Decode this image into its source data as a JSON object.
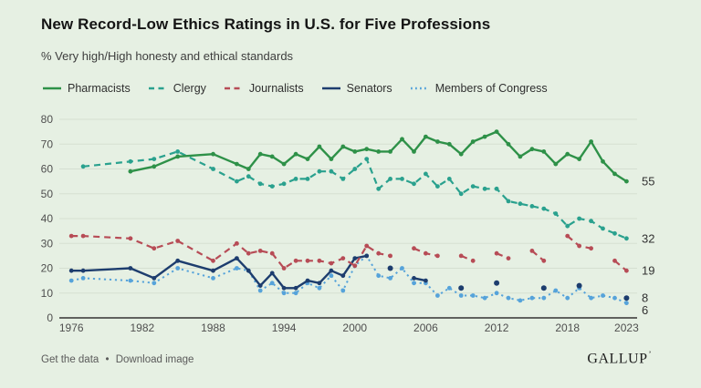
{
  "header": {
    "title": "New Record-Low Ethics Ratings in U.S. for Five Professions",
    "subtitle": "% Very high/High honesty and ethical standards"
  },
  "footer": {
    "get_data_label": "Get the data",
    "separator": "•",
    "download_label": "Download image",
    "logo": "GALLUP",
    "logo_mark": "ʼ"
  },
  "colors": {
    "background": "#e6f0e3",
    "gridline": "#d5dfd1",
    "axis_line": "#333333",
    "tick_text": "#4f4f4f",
    "end_label_text": "#323232"
  },
  "chart_data": {
    "type": "line",
    "title": "New Record-Low Ethics Ratings in U.S. for Five Professions",
    "subtitle": "% Very high/High honesty and ethical standards",
    "xlabel": "",
    "ylabel": "",
    "xlim": [
      1976,
      2023
    ],
    "ylim": [
      0,
      80
    ],
    "grid": true,
    "legend_position": "top",
    "x_ticks": [
      1976,
      1982,
      1988,
      1994,
      2000,
      2006,
      2012,
      2018,
      2023
    ],
    "y_ticks": [
      0,
      10,
      20,
      30,
      40,
      50,
      60,
      70,
      80
    ],
    "series": [
      {
        "name": "Pharmacists",
        "slug": "pharmacists",
        "color": "#2e9148",
        "style": "solid",
        "end_label": "55",
        "segments": [
          [
            [
              1981,
              59
            ],
            [
              1983,
              61
            ],
            [
              1985,
              65
            ],
            [
              1988,
              66
            ],
            [
              1990,
              62
            ],
            [
              1991,
              60
            ],
            [
              1992,
              66
            ],
            [
              1993,
              65
            ],
            [
              1994,
              62
            ],
            [
              1995,
              66
            ],
            [
              1996,
              64
            ],
            [
              1997,
              69
            ],
            [
              1998,
              64
            ],
            [
              1999,
              69
            ],
            [
              2000,
              67
            ],
            [
              2001,
              68
            ],
            [
              2002,
              67
            ],
            [
              2003,
              67
            ],
            [
              2004,
              72
            ],
            [
              2005,
              67
            ],
            [
              2006,
              73
            ],
            [
              2007,
              71
            ],
            [
              2008,
              70
            ],
            [
              2009,
              66
            ],
            [
              2010,
              71
            ],
            [
              2011,
              73
            ],
            [
              2012,
              75
            ],
            [
              2013,
              70
            ],
            [
              2014,
              65
            ],
            [
              2015,
              68
            ],
            [
              2016,
              67
            ],
            [
              2017,
              62
            ],
            [
              2018,
              66
            ],
            [
              2019,
              64
            ],
            [
              2020,
              71
            ],
            [
              2021,
              63
            ],
            [
              2022,
              58
            ],
            [
              2023,
              55
            ]
          ]
        ]
      },
      {
        "name": "Clergy",
        "slug": "clergy",
        "color": "#2aa18e",
        "style": "dashed",
        "end_label": "32",
        "segments": [
          [
            [
              1977,
              61
            ],
            [
              1981,
              63
            ],
            [
              1983,
              64
            ],
            [
              1985,
              67
            ],
            [
              1988,
              60
            ],
            [
              1990,
              55
            ],
            [
              1991,
              57
            ],
            [
              1992,
              54
            ],
            [
              1993,
              53
            ],
            [
              1994,
              54
            ],
            [
              1995,
              56
            ],
            [
              1996,
              56
            ],
            [
              1997,
              59
            ],
            [
              1998,
              59
            ],
            [
              1999,
              56
            ],
            [
              2000,
              60
            ],
            [
              2001,
              64
            ],
            [
              2002,
              52
            ],
            [
              2003,
              56
            ],
            [
              2004,
              56
            ],
            [
              2005,
              54
            ],
            [
              2006,
              58
            ],
            [
              2007,
              53
            ],
            [
              2008,
              56
            ],
            [
              2009,
              50
            ],
            [
              2010,
              53
            ],
            [
              2011,
              52
            ],
            [
              2012,
              52
            ],
            [
              2013,
              47
            ],
            [
              2014,
              46
            ],
            [
              2015,
              45
            ],
            [
              2016,
              44
            ],
            [
              2017,
              42
            ],
            [
              2018,
              37
            ],
            [
              2019,
              40
            ],
            [
              2020,
              39
            ],
            [
              2021,
              36
            ],
            [
              2022,
              34
            ],
            [
              2023,
              32
            ]
          ]
        ]
      },
      {
        "name": "Journalists",
        "slug": "journalists",
        "color": "#b74c56",
        "style": "dashed",
        "end_label": "19",
        "segments": [
          [
            [
              1976,
              33
            ],
            [
              1977,
              33
            ],
            [
              1981,
              32
            ],
            [
              1983,
              28
            ],
            [
              1985,
              31
            ],
            [
              1988,
              23
            ],
            [
              1990,
              30
            ],
            [
              1991,
              26
            ],
            [
              1992,
              27
            ],
            [
              1993,
              26
            ],
            [
              1994,
              20
            ],
            [
              1995,
              23
            ],
            [
              1996,
              23
            ],
            [
              1997,
              23
            ],
            [
              1998,
              22
            ],
            [
              1999,
              24
            ],
            [
              2000,
              21
            ],
            [
              2001,
              29
            ],
            [
              2002,
              26
            ],
            [
              2003,
              25
            ]
          ],
          [
            [
              2005,
              28
            ],
            [
              2006,
              26
            ],
            [
              2007,
              25
            ]
          ],
          [
            [
              2009,
              25
            ],
            [
              2010,
              23
            ]
          ],
          [
            [
              2012,
              26
            ],
            [
              2013,
              24
            ]
          ],
          [
            [
              2015,
              27
            ],
            [
              2016,
              23
            ]
          ],
          [
            [
              2018,
              33
            ],
            [
              2019,
              29
            ],
            [
              2020,
              28
            ]
          ],
          [
            [
              2022,
              23
            ],
            [
              2023,
              19
            ]
          ]
        ]
      },
      {
        "name": "Senators",
        "slug": "senators",
        "color": "#1d3d6e",
        "style": "solid",
        "end_label": "8",
        "segments": [
          [
            [
              1976,
              19
            ],
            [
              1977,
              19
            ],
            [
              1981,
              20
            ],
            [
              1983,
              16
            ],
            [
              1985,
              23
            ],
            [
              1988,
              19
            ],
            [
              1990,
              24
            ],
            [
              1991,
              19
            ],
            [
              1992,
              13
            ],
            [
              1993,
              18
            ],
            [
              1994,
              12
            ],
            [
              1995,
              12
            ],
            [
              1996,
              15
            ],
            [
              1997,
              14
            ],
            [
              1998,
              19
            ],
            [
              1999,
              17
            ],
            [
              2000,
              24
            ],
            [
              2001,
              25
            ]
          ],
          [
            [
              2003,
              20
            ]
          ],
          [
            [
              2005,
              16
            ],
            [
              2006,
              15
            ]
          ],
          [
            [
              2009,
              12
            ]
          ],
          [
            [
              2012,
              14
            ]
          ],
          [
            [
              2016,
              12
            ]
          ],
          [
            [
              2019,
              13
            ]
          ],
          [
            [
              2023,
              8
            ]
          ]
        ]
      },
      {
        "name": "Members of Congress",
        "slug": "members-of-congress",
        "color": "#56a3da",
        "style": "dotted",
        "end_label": "6",
        "segments": [
          [
            [
              1976,
              15
            ],
            [
              1977,
              16
            ],
            [
              1981,
              15
            ],
            [
              1983,
              14
            ],
            [
              1985,
              20
            ],
            [
              1988,
              16
            ],
            [
              1990,
              20
            ],
            [
              1991,
              19
            ],
            [
              1992,
              11
            ],
            [
              1993,
              14
            ],
            [
              1994,
              10
            ],
            [
              1995,
              10
            ],
            [
              1996,
              14
            ],
            [
              1997,
              12
            ],
            [
              1998,
              17
            ],
            [
              1999,
              11
            ],
            [
              2000,
              21
            ],
            [
              2001,
              25
            ],
            [
              2002,
              17
            ],
            [
              2003,
              16
            ],
            [
              2004,
              20
            ],
            [
              2005,
              14
            ],
            [
              2006,
              14
            ],
            [
              2007,
              9
            ],
            [
              2008,
              12
            ],
            [
              2009,
              9
            ],
            [
              2010,
              9
            ],
            [
              2011,
              8
            ],
            [
              2012,
              10
            ],
            [
              2013,
              8
            ],
            [
              2014,
              7
            ],
            [
              2015,
              8
            ],
            [
              2016,
              8
            ],
            [
              2017,
              11
            ],
            [
              2018,
              8
            ],
            [
              2019,
              12
            ],
            [
              2020,
              8
            ],
            [
              2021,
              9
            ],
            [
              2022,
              8
            ],
            [
              2023,
              6
            ]
          ]
        ]
      }
    ]
  }
}
